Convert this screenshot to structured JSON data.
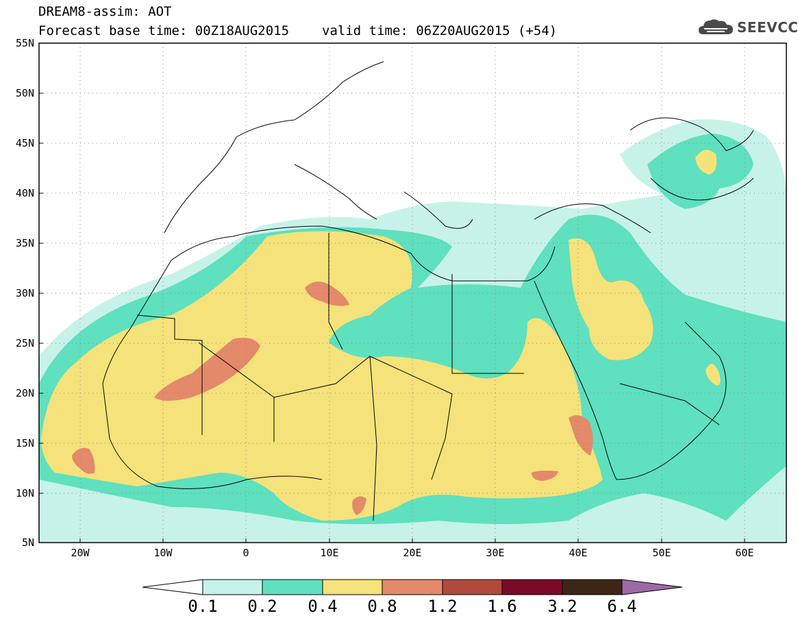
{
  "header": {
    "title": "DREAM8-assim: AOT",
    "base_time": "Forecast base time: 00Z18AUG2015",
    "valid_time": "valid time: 06Z20AUG2015 (+54)",
    "logo_text": "SEEVCCC",
    "logo_icon": "cloud-icon"
  },
  "map": {
    "lat_labels": [
      "55N",
      "50N",
      "45N",
      "40N",
      "35N",
      "30N",
      "25N",
      "20N",
      "15N",
      "10N",
      "5N"
    ],
    "lon_labels": [
      "20W",
      "10W",
      "0",
      "10E",
      "20E",
      "30E",
      "40E",
      "50E",
      "60E"
    ],
    "lon_range": [
      -25,
      65
    ],
    "lat_range": [
      5,
      55
    ],
    "gridlines": "dotted"
  },
  "colorbar": {
    "labels": [
      "0.1",
      "0.2",
      "0.4",
      "0.8",
      "1.2",
      "1.6",
      "3.2",
      "6.4"
    ],
    "colors": [
      "#ffffff",
      "#c7f2ea",
      "#5fe0be",
      "#f5e27a",
      "#e4896a",
      "#b04a3e",
      "#7a0a25",
      "#3d2614",
      "#9d6aa8"
    ]
  }
}
